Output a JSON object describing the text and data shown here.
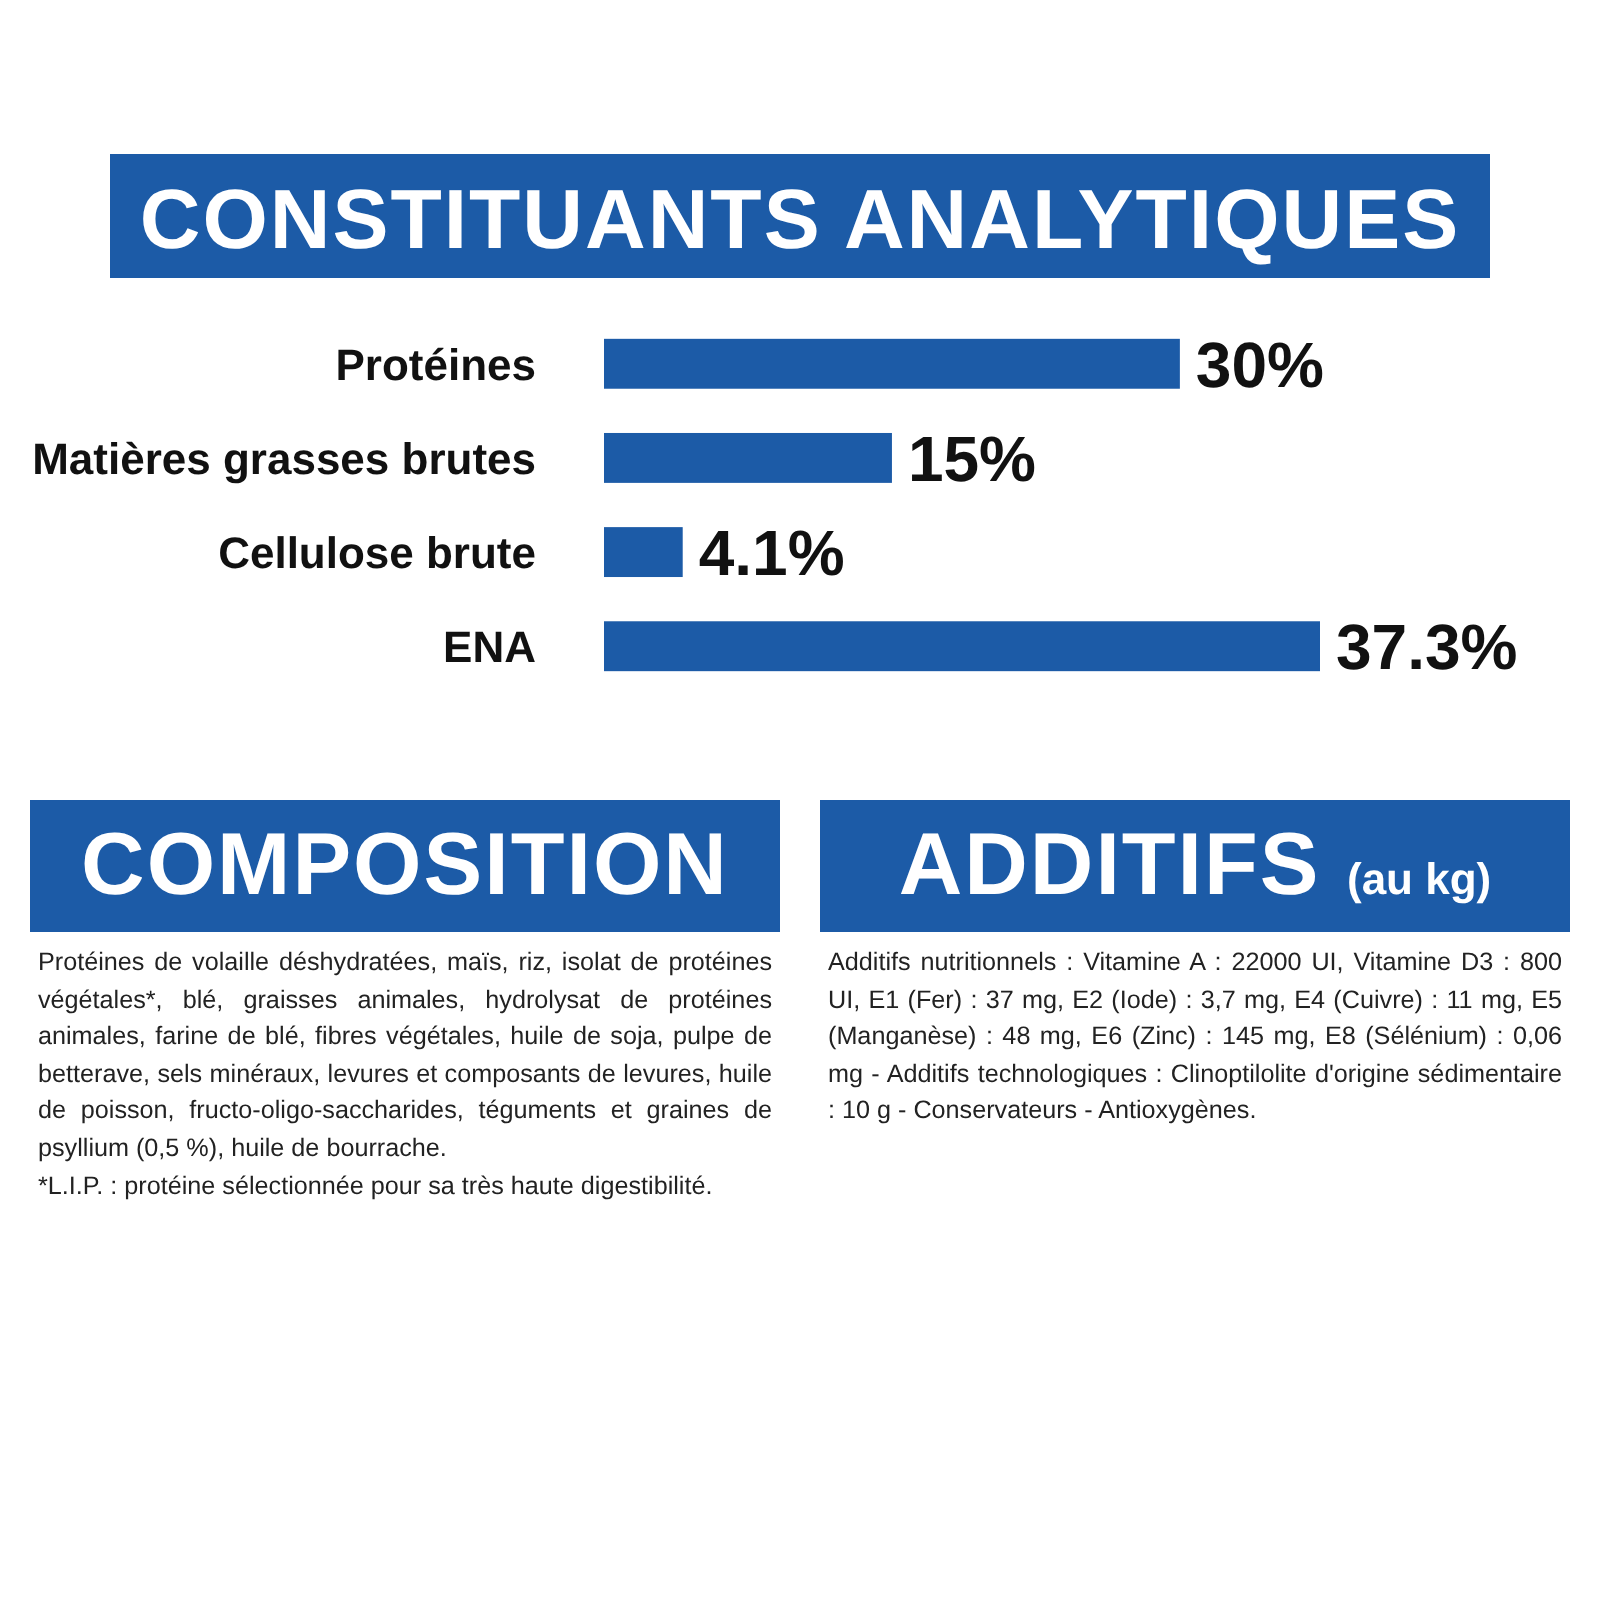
{
  "chart_data": [
    {
      "type": "bar",
      "orientation": "horizontal",
      "title": "CONSTITUANTS ANALYTIQUES",
      "categories": [
        "Protéines",
        "Matières grasses brutes",
        "Cellulose brute",
        "ENA"
      ],
      "values": [
        30,
        15,
        4.1,
        37.3
      ],
      "color": "#1c5ba7",
      "value_labels": [
        "30%",
        "15%",
        "4.1%",
        "37.3%"
      ]
    },
    {
      "type": "other",
      "title": "COMPOSITION",
      "annotations": [
        "Protéines de volaille déshydratées, maïs, riz, isolat de protéines végétales*, blé, graisses animales, hydrolysat de protéines animales, farine de blé, fibres végétales, huile de soja, pulpe de betterave, sels minéraux, levures et composants de levures, huile de poisson, fructo-oligo-saccharides, téguments et graines de psyllium (0,5 %), huile de bourrache.",
        "*L.I.P. : protéine sélectionnée pour sa très haute digestibilité."
      ]
    },
    {
      "type": "other",
      "title": "ADDITIFS",
      "subtitle": "(au kg)",
      "annotations": [
        "Additifs nutritionnels : Vitamine A : 22000 UI, Vitamine D3 : 800 UI, E1 (Fer) : 37 mg, E2 (Iode) : 3,7 mg, E4 (Cuivre) : 11 mg, E5 (Manganèse) : 48 mg, E6 (Zinc) : 145 mg, E8 (Sélénium) : 0,06 mg - Additifs technologiques : Clinoptilolite d'origine sédimentaire : 10 g - Conservateurs - Antioxygènes."
      ]
    }
  ]
}
